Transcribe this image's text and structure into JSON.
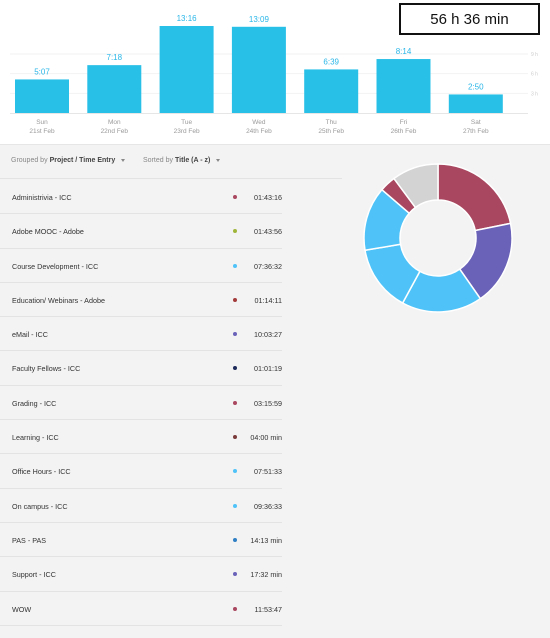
{
  "total": {
    "label": "56 h 36 min"
  },
  "chart_data": {
    "type": "bar",
    "categories": [
      "Sun",
      "Mon",
      "Tue",
      "Wed",
      "Thu",
      "Fri",
      "Sat"
    ],
    "dates": [
      "21st Feb",
      "22nd Feb",
      "23rd Feb",
      "24th Feb",
      "25th Feb",
      "26th Feb",
      "27th Feb"
    ],
    "value_labels": [
      "5:07",
      "7:18",
      "13:16",
      "13:09",
      "6:39",
      "8:14",
      "2:50"
    ],
    "values": [
      5.12,
      7.3,
      13.27,
      13.15,
      6.65,
      8.23,
      2.83
    ],
    "y_ticks": [
      {
        "value": 9,
        "label": "9 h"
      },
      {
        "value": 6,
        "label": "6 h"
      },
      {
        "value": 3,
        "label": "3 h"
      }
    ],
    "ylim": [
      0,
      13.27
    ],
    "bar_color": "#29c0e8"
  },
  "filters": {
    "group_prefix": "Grouped by",
    "group_value": "Project / Time Entry",
    "sort_prefix": "Sorted by",
    "sort_value": "Title (A - z)"
  },
  "entries": [
    {
      "title": "Administrivia - ICC",
      "duration": "01:43:16",
      "color": "#a8475f"
    },
    {
      "title": "Adobe MOOC - Adobe",
      "duration": "01:43:56",
      "color": "#9fb53a"
    },
    {
      "title": "Course Development - ICC",
      "duration": "07:36:32",
      "color": "#4fc3f7"
    },
    {
      "title": "Education/ Webinars - Adobe",
      "duration": "01:14:11",
      "color": "#a33a3a"
    },
    {
      "title": "eMail - ICC",
      "duration": "10:03:27",
      "color": "#6a62b8"
    },
    {
      "title": "Faculty Fellows - ICC",
      "duration": "01:01:19",
      "color": "#1e2b5a"
    },
    {
      "title": "Grading - ICC",
      "duration": "03:15:59",
      "color": "#a8475f"
    },
    {
      "title": "Learning - ICC",
      "duration": "04:00 min",
      "color": "#7a3a3a"
    },
    {
      "title": "Office Hours - ICC",
      "duration": "07:51:33",
      "color": "#4fc3f7"
    },
    {
      "title": "On campus - ICC",
      "duration": "09:36:33",
      "color": "#4fc3f7"
    },
    {
      "title": "PAS - PAS",
      "duration": "14:13 min",
      "color": "#2f7fc4"
    },
    {
      "title": "Support - ICC",
      "duration": "17:32 min",
      "color": "#6a62b8"
    },
    {
      "title": "WOW",
      "duration": "11:53:47",
      "color": "#a8475f"
    }
  ],
  "donut": {
    "segments": [
      {
        "value": 11.9,
        "color": "#a8475f"
      },
      {
        "value": 10.06,
        "color": "#6a62b8"
      },
      {
        "value": 9.61,
        "color": "#4fc3f7"
      },
      {
        "value": 7.86,
        "color": "#4fc3f7"
      },
      {
        "value": 7.61,
        "color": "#4fc3f7"
      },
      {
        "value": 1.93,
        "color": "#a8475f"
      },
      {
        "value": 5.53,
        "color": "#d3d3d3"
      }
    ]
  }
}
